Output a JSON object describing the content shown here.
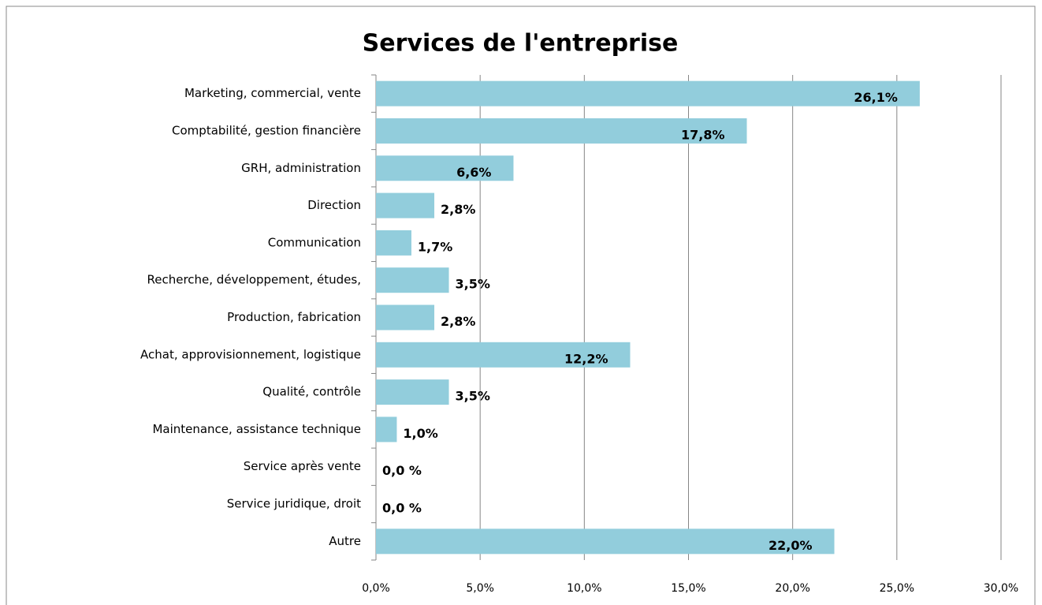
{
  "chart_data": {
    "type": "bar",
    "orientation": "horizontal",
    "title": "Services de l'entreprise",
    "categories": [
      "Marketing, commercial, vente",
      "Comptabilité, gestion financière",
      "GRH, administration",
      "Direction",
      "Communication",
      "Recherche, développement, études,",
      "Production, fabrication",
      "Achat, approvisionnement, logistique",
      "Qualité, contrôle",
      "Maintenance, assistance technique",
      "Service après vente",
      "Service juridique, droit",
      "Autre"
    ],
    "values": [
      26.1,
      17.8,
      6.6,
      2.8,
      1.7,
      3.5,
      2.8,
      12.2,
      3.5,
      1.0,
      0.0,
      0.0,
      22.0
    ],
    "value_labels": [
      "26,1%",
      "17,8%",
      "6,6%",
      "2,8%",
      "1,7%",
      "3,5%",
      "2,8%",
      "12,2%",
      "3,5%",
      "1,0%",
      "0,0 %",
      "0,0 %",
      "22,0%"
    ],
    "color": "#92cddc",
    "xlim": [
      0,
      30
    ],
    "xticks": [
      {
        "value": 0,
        "label": "0,0%"
      },
      {
        "value": 5,
        "label": "5,0%"
      },
      {
        "value": 10,
        "label": "10,0%"
      },
      {
        "value": 15,
        "label": "15,0%"
      },
      {
        "value": 20,
        "label": "20,0%"
      },
      {
        "value": 25,
        "label": "25,0%"
      },
      {
        "value": 30,
        "label": "30,0%"
      }
    ],
    "grid": true
  }
}
